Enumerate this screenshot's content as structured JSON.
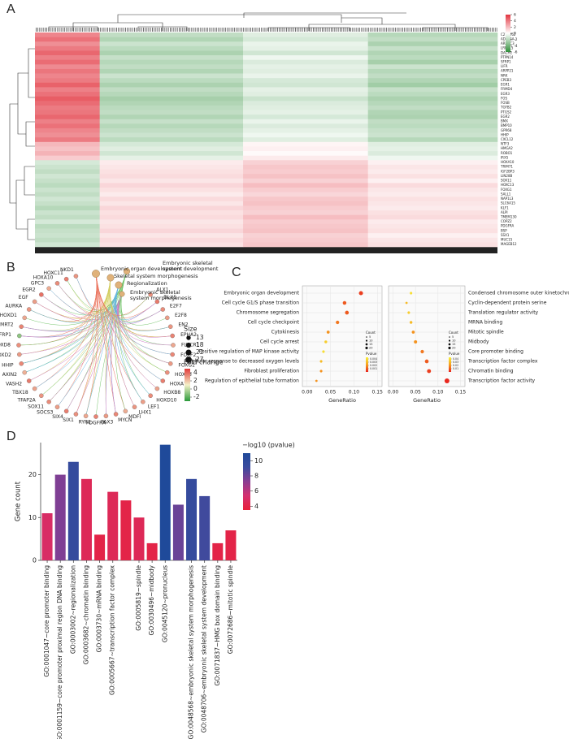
{
  "panel_labels": [
    "A",
    "B",
    "C",
    "D"
  ],
  "chart_data": [
    {
      "type": "heatmap",
      "rows": [
        "C21orf62",
        "ADRA2A",
        "ARRDC3",
        "LRRC15",
        "DACH1",
        "PTPN14",
        "SFRP1",
        "LIFR",
        "ARPP21",
        "NRK",
        "CPEB3",
        "EGR1",
        "FRMD4",
        "EGR3",
        "FOS",
        "FOSB",
        "TGFB2",
        "PTGS2",
        "EGR2",
        "BMX",
        "BMP10",
        "GPR68",
        "HHIP",
        "CXCL12",
        "NTF3",
        "HMGA2",
        "ROBO1",
        "IRX5",
        "HOXA10",
        "TRIM71",
        "IGF2BP3",
        "LIN28B",
        "SOX11",
        "HOXC13",
        "FOXG1",
        "SALL1",
        "NAP1L3",
        "SLC6A15",
        "KLF1",
        "ALPI",
        "TMEM130",
        "COPZ2",
        "PDGFRA",
        "BSP",
        "SSX1",
        "MUC15",
        "MAGEB12"
      ],
      "values": [
        [
          2.4,
          -1.2,
          -0.6,
          -1.4
        ],
        [
          2.8,
          -1.5,
          -0.8,
          -1.2
        ],
        [
          2.2,
          -1,
          -0.4,
          -1.6
        ],
        [
          2.6,
          -1.3,
          -0.5,
          -1.1
        ],
        [
          3,
          -1.6,
          -0.9,
          -1.5
        ],
        [
          2.5,
          -1.1,
          -0.3,
          -1.3
        ],
        [
          2.9,
          -1.4,
          -0.7,
          -1.7
        ],
        [
          2.3,
          -1.2,
          -0.5,
          -1
        ],
        [
          2.7,
          -1.5,
          -0.6,
          -1.4
        ],
        [
          2.4,
          -1,
          -0.4,
          -1.2
        ],
        [
          2.6,
          -1.3,
          -0.8,
          -1.5
        ],
        [
          3.1,
          -1.6,
          -0.9,
          -1.8
        ],
        [
          2.5,
          -1.2,
          -0.5,
          -1.1
        ],
        [
          2.8,
          -1.4,
          -0.6,
          -1.3
        ],
        [
          3.2,
          -1.7,
          -1,
          -1.6
        ],
        [
          2.9,
          -1.5,
          -0.7,
          -1.4
        ],
        [
          2.6,
          -1.3,
          -0.6,
          -1.2
        ],
        [
          2.7,
          -1.2,
          -0.5,
          -1.5
        ],
        [
          3,
          -1.5,
          -0.8,
          -1.6
        ],
        [
          2.5,
          -1.1,
          -0.4,
          -1.2
        ],
        [
          2.8,
          -1.4,
          -0.7,
          -1.3
        ],
        [
          2.4,
          -1.2,
          -0.5,
          -1.1
        ],
        [
          2.2,
          -1,
          -0.3,
          -1
        ],
        [
          2.6,
          -1.3,
          -0.6,
          -1.4
        ],
        [
          1.4,
          -0.8,
          0.2,
          -0.6
        ],
        [
          1.2,
          -0.6,
          0.3,
          -0.5
        ],
        [
          1.5,
          -0.9,
          0.1,
          -0.7
        ],
        [
          1,
          -0.5,
          0.4,
          -0.3
        ],
        [
          -0.8,
          0.4,
          0.9,
          0.3
        ],
        [
          -1,
          0.5,
          1.1,
          0.5
        ],
        [
          -1.2,
          0.6,
          1,
          0.4
        ],
        [
          -0.9,
          0.7,
          1.2,
          0.6
        ],
        [
          -1.1,
          0.5,
          0.9,
          0.3
        ],
        [
          -1.3,
          0.8,
          1.3,
          0.7
        ],
        [
          -1,
          0.6,
          1,
          0.5
        ],
        [
          -1.2,
          0.4,
          0.8,
          0.4
        ],
        [
          -0.9,
          0.7,
          1.1,
          0.6
        ],
        [
          -1.1,
          0.5,
          1.2,
          0.5
        ],
        [
          -1.4,
          0.8,
          1,
          0.4
        ],
        [
          -1,
          0.6,
          0.9,
          0.6
        ],
        [
          -1.2,
          0.7,
          1.3,
          0.7
        ],
        [
          -0.8,
          0.5,
          1,
          0.4
        ],
        [
          -1.3,
          0.6,
          1.1,
          0.5
        ],
        [
          -1.1,
          0.8,
          1.2,
          0.6
        ],
        [
          -1,
          0.5,
          0.9,
          0.3
        ],
        [
          -1.2,
          0.7,
          1,
          0.5
        ],
        [
          -0.9,
          0.6,
          1.1,
          0.6
        ]
      ],
      "zlim": [
        -6,
        6
      ],
      "colorbar_ticks": [
        6,
        4,
        2,
        0,
        -2,
        -4,
        -6
      ]
    },
    {
      "type": "network",
      "terms": [
        "Embryonic organ development",
        "Skeletal system morphogenesis",
        "Embryonic skeletal system development",
        "Regionalization",
        "Embryonic skeletal system morphogenesis"
      ],
      "term_sizes": [
        27,
        22,
        18,
        22,
        13
      ],
      "genes": [
        "NKD1",
        "HOXC11",
        "HOXA10",
        "GPC3",
        "EGR2",
        "EGF",
        "AURKA",
        "HOXD1",
        "DMRT2",
        "SFRP1",
        "HOXD8",
        "HOXD2",
        "HHIP",
        "AXIN2",
        "VASH2",
        "TBX18",
        "TFAP2A",
        "SOX11",
        "SOCS3",
        "SIX4",
        "SIX1",
        "RYR2",
        "PDGFRA",
        "PAX3",
        "MYCN",
        "MDFI",
        "LHX1",
        "LEF1",
        "HOXD10",
        "HOXB8",
        "HOXA7",
        "HOXA3",
        "FOXG1",
        "FOXF2",
        "FLVCR1",
        "EPHA2",
        "EN2",
        "E2F8",
        "E2F7",
        "DLX5",
        "ALX1"
      ],
      "fold_change": [
        3,
        3.5,
        3.2,
        2.5,
        3.8,
        2.8,
        3,
        2.6,
        3.4,
        -1,
        3.1,
        2.9,
        3.3,
        2.4,
        3.6,
        2.7,
        3,
        3.2,
        2.8,
        3.5,
        3.1,
        2.6,
        3.4,
        2.9,
        3.3,
        2.5,
        3,
        2.8,
        3.2,
        2.7,
        3.5,
        3.1,
        2.9,
        3.3,
        2.6,
        3.4,
        3,
        2.8,
        3.2,
        3.6,
        3.1
      ],
      "size_title": "Size",
      "size_ticks": [
        13,
        18,
        22,
        27
      ],
      "color_title": "Fold change",
      "color_ticks": [
        4,
        2,
        0,
        -2
      ],
      "clim": [
        -3,
        5
      ]
    },
    {
      "type": "dot",
      "categories": [
        "Embryonic organ development",
        "Cell cycle G1/S phase transition",
        "Chromosome segregation",
        "Cell cycle checkpoint",
        "Cytokinesis",
        "Cell cycle arrest",
        "Positive regulation of MAP kinase activity",
        "Cellular response to decreased oxygen levels",
        "Fibroblast proliferation",
        "Regulation of epithelial tube formation"
      ],
      "values": [
        0.115,
        0.08,
        0.085,
        0.065,
        0.045,
        0.04,
        0.035,
        0.03,
        0.03,
        0.02
      ],
      "counts": [
        13,
        10,
        11,
        9,
        7,
        6,
        5,
        5,
        5,
        4
      ],
      "pvalues": [
        0.0005,
        0.001,
        0.001,
        0.0015,
        0.002,
        0.0035,
        0.004,
        0.003,
        0.002,
        0.002
      ],
      "xlabel": "GeneRatio",
      "xlim": [
        -0.01,
        0.16
      ],
      "xticks": [
        {
          "value": 0,
          "label": "0.00"
        },
        {
          "value": 0.05,
          "label": "0.05"
        },
        {
          "value": 0.1,
          "label": "0.10"
        },
        {
          "value": 0.15,
          "label": "0.15"
        }
      ],
      "count_title": "Count",
      "count_ticks": [
        5,
        10,
        15,
        20
      ],
      "pvalue_title": "Pvalue",
      "pvalue_ticks": [
        0.004,
        0.003,
        0.002,
        0.001
      ],
      "plim": [
        0,
        0.0045
      ],
      "label_side": "left"
    },
    {
      "type": "dot",
      "categories": [
        "Condensed chromosome outer kinetochrome",
        "Cyclin-dependent protein serine",
        "Translation regulator activity",
        "MRNA binding",
        "Mitotic spindle",
        "Midbody",
        "Core promoter binding",
        "Transcription factor complex",
        "Chromatin binding",
        "Transcription factor activity"
      ],
      "values": [
        0.04,
        0.03,
        0.035,
        0.04,
        0.045,
        0.05,
        0.065,
        0.075,
        0.08,
        0.12
      ],
      "counts": [
        5,
        4,
        5,
        6,
        7,
        8,
        9,
        11,
        12,
        18
      ],
      "pvalues": [
        0.04,
        0.03,
        0.035,
        0.03,
        0.02,
        0.02,
        0.015,
        0.01,
        0.005,
        0.001
      ],
      "xlabel": "GeneRatio",
      "xlim": [
        -0.01,
        0.16
      ],
      "xticks": [
        {
          "value": 0,
          "label": "0.00"
        },
        {
          "value": 0.05,
          "label": "0.05"
        },
        {
          "value": 0.1,
          "label": "0.10"
        },
        {
          "value": 0.15,
          "label": "0.15"
        }
      ],
      "count_title": "Count",
      "count_ticks": [
        5,
        10,
        15,
        20
      ],
      "pvalue_title": "Pvalue",
      "pvalue_ticks": [
        0.04,
        0.03,
        0.02,
        0.01
      ],
      "plim": [
        0,
        0.045
      ],
      "label_side": "right"
    },
    {
      "type": "bar",
      "categories": [
        "GO:0001047~core promoter binding",
        "GO:0001159~core promoter proximal region DNA binding",
        "GO:0003002~regionalization",
        "GO:0003682~chromatin binding",
        "GO:0003730~mRNA binding",
        "GO:0005667~transcription factor complex",
        null,
        "GO:0005819~spindle",
        "GO:0030496~midbody",
        "GO:0045120~pronucleus",
        null,
        "GO:0048568~embryonic skeletal system morphogenesis",
        "GO:0048706~embryonic skeletal system development",
        "GO:0071837~HMG box domain binding",
        "GO:0072686~mitotic spindle"
      ],
      "values": [
        11,
        20,
        23,
        19,
        6,
        16,
        14,
        10,
        4,
        27,
        13,
        19,
        15,
        4,
        7
      ],
      "color_values": [
        5,
        7.5,
        9.5,
        4.5,
        4,
        4.5,
        4,
        4.5,
        4,
        11,
        8,
        9.5,
        9,
        4,
        4
      ],
      "ylabel": "Gene count",
      "ylim": [
        0,
        27.5
      ],
      "yticks": [
        0,
        10,
        20
      ],
      "color_title": "−log10 (pvalue)",
      "color_ticks": [
        10,
        8,
        6,
        4
      ],
      "clim": [
        3.5,
        11
      ]
    }
  ]
}
